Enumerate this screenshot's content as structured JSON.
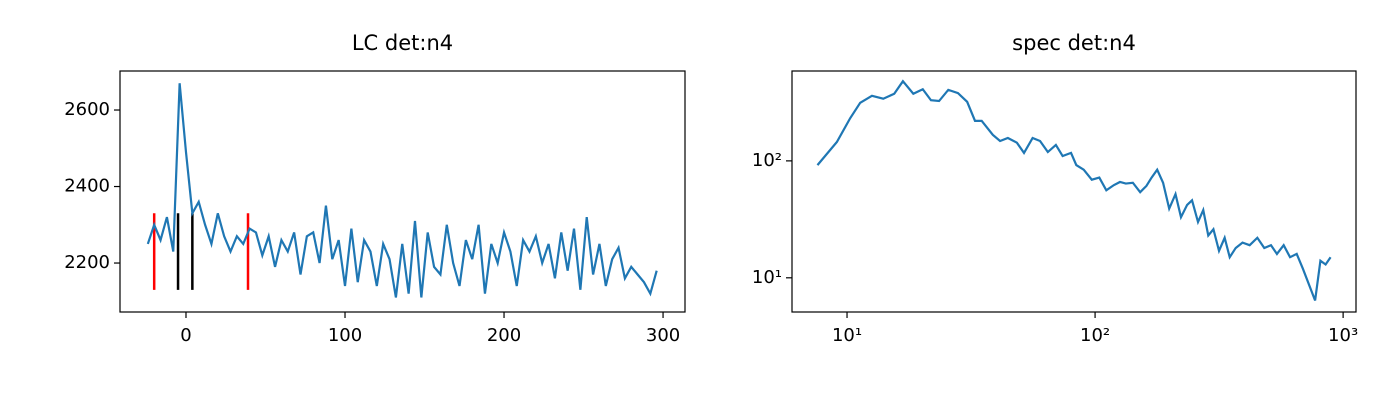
{
  "chart_data": [
    {
      "type": "line",
      "title": "LC det:n4",
      "xscale": "linear",
      "yscale": "linear",
      "xlim": [
        -41.5,
        313.8
      ],
      "ylim": [
        2072,
        2702
      ],
      "xticks": [
        0,
        100,
        200,
        300
      ],
      "yticks": [
        2200,
        2400,
        2600
      ],
      "x": [
        -24,
        -20,
        -16,
        -12,
        -8,
        -4,
        0,
        4,
        8,
        12,
        16,
        20,
        24,
        28,
        32,
        36,
        40,
        44,
        48,
        52,
        56,
        60,
        64,
        68,
        72,
        76,
        80,
        84,
        88,
        92,
        96,
        100,
        104,
        108,
        112,
        116,
        120,
        124,
        128,
        132,
        136,
        140,
        144,
        148,
        152,
        156,
        160,
        164,
        168,
        172,
        176,
        180,
        184,
        188,
        192,
        196,
        200,
        204,
        208,
        212,
        216,
        220,
        224,
        228,
        232,
        236,
        240,
        244,
        248,
        252,
        256,
        260,
        264,
        268,
        272,
        276,
        280,
        284,
        288,
        292,
        296
      ],
      "series": [
        {
          "color": "#1f77b4",
          "values": [
            2250,
            2300,
            2260,
            2320,
            2230,
            2670,
            2490,
            2330,
            2360,
            2300,
            2250,
            2330,
            2270,
            2230,
            2270,
            2250,
            2290,
            2280,
            2220,
            2270,
            2190,
            2260,
            2230,
            2280,
            2170,
            2270,
            2280,
            2200,
            2350,
            2210,
            2260,
            2140,
            2290,
            2150,
            2260,
            2230,
            2140,
            2250,
            2210,
            2110,
            2250,
            2120,
            2310,
            2110,
            2280,
            2190,
            2170,
            2300,
            2200,
            2140,
            2260,
            2210,
            2300,
            2120,
            2250,
            2200,
            2280,
            2230,
            2140,
            2260,
            2230,
            2270,
            2200,
            2250,
            2160,
            2280,
            2180,
            2290,
            2130,
            2320,
            2170,
            2250,
            2140,
            2210,
            2240,
            2160,
            2190,
            2170,
            2150,
            2120,
            2180
          ]
        }
      ],
      "vlines": [
        {
          "x": -20,
          "ymin": 2130,
          "ymax": 2330,
          "color": "#ff0000"
        },
        {
          "x": 39,
          "ymin": 2130,
          "ymax": 2330,
          "color": "#ff0000"
        },
        {
          "x": -5,
          "ymin": 2130,
          "ymax": 2330,
          "color": "#000000"
        },
        {
          "x": 4,
          "ymin": 2130,
          "ymax": 2330,
          "color": "#000000"
        }
      ]
    },
    {
      "type": "line",
      "title": "spec det:n4",
      "xscale": "log",
      "yscale": "log",
      "xlim": [
        6.0,
        1127
      ],
      "ylim": [
        5.1,
        587
      ],
      "xticks": [
        {
          "value": 10,
          "label": "10¹"
        },
        {
          "value": 100,
          "label": "10²"
        },
        {
          "value": 1000,
          "label": "10³"
        }
      ],
      "yticks": [
        {
          "value": 10,
          "label": "10¹"
        },
        {
          "value": 100,
          "label": "10²"
        }
      ],
      "x": [
        7.6,
        9.1,
        10.3,
        11.3,
        12.6,
        14,
        15.5,
        16.8,
        18.5,
        20.2,
        21.8,
        23.5,
        25.6,
        28,
        30.5,
        32.8,
        34.9,
        38.7,
        41.4,
        44.5,
        48.4,
        51.7,
        56,
        60,
        64.5,
        69.5,
        74,
        80,
        84,
        90,
        97,
        104,
        111,
        119,
        126,
        133,
        142,
        152,
        161,
        169,
        178,
        188,
        199,
        211,
        222,
        235,
        246,
        260,
        273,
        286,
        300,
        316,
        333,
        349,
        369,
        393,
        420,
        451,
        481,
        512,
        541,
        576,
        611,
        650,
        688,
        771,
        810,
        850,
        890
      ],
      "series": [
        {
          "color": "#1f77b4",
          "values": [
            92,
            145,
            232,
            314,
            360,
            340,
            375,
            480,
            375,
            410,
            330,
            325,
            405,
            380,
            320,
            220,
            220,
            167,
            148,
            157,
            143,
            117,
            157,
            148,
            119,
            137,
            110,
            117,
            92,
            84,
            69,
            72,
            56,
            62,
            66,
            64,
            65,
            54,
            61,
            72,
            84,
            65,
            39,
            52,
            33,
            42,
            46,
            30,
            38,
            23,
            26,
            17,
            22,
            15,
            18,
            20,
            19,
            22,
            18,
            19,
            16,
            19,
            15,
            16,
            12,
            6.4,
            14,
            13,
            15
          ]
        }
      ]
    }
  ]
}
